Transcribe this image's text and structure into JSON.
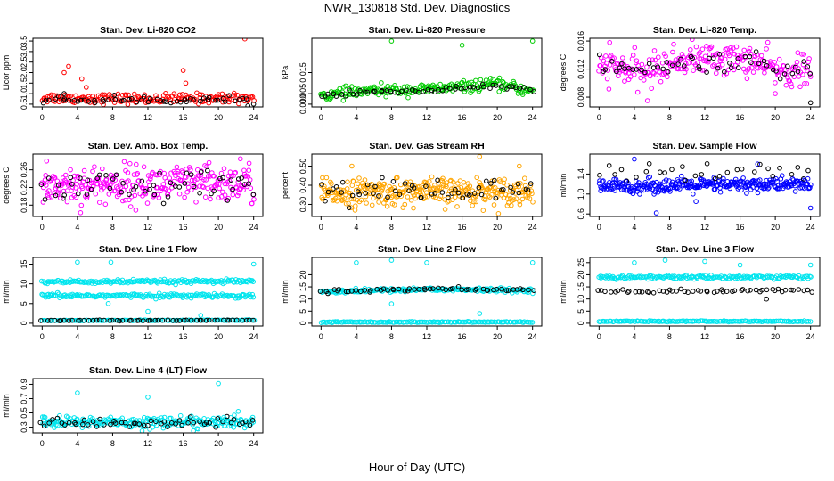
{
  "title": "NWR_130818 Std. Dev. Diagnostics",
  "xlabel": "Hour of Day (UTC)",
  "x_ticks": [
    0,
    4,
    8,
    12,
    16,
    20,
    24
  ],
  "colors": {
    "black": "#000000",
    "red": "#ff0000",
    "green": "#00cc00",
    "magenta": "#ff00ff",
    "orange": "#ffa500",
    "blue": "#0000ff",
    "cyan": "#00e5ee"
  },
  "chart_data": [
    {
      "type": "scatter",
      "title": "Stan. Dev. Li-820 CO2",
      "ylabel": "Licor ppm",
      "xlim": [
        0,
        24
      ],
      "ylim": [
        0.5,
        3.5
      ],
      "yticks": [
        "0.5",
        "1.0",
        "1.5",
        "2.0",
        "2.5",
        "3.0",
        "3.5"
      ],
      "series": [
        {
          "color": "red",
          "base": [
            [
              0,
              0.8
            ],
            [
              12,
              0.75
            ],
            [
              24,
              0.8
            ]
          ],
          "noise": 0.12,
          "n": 180,
          "extra": [
            [
              3,
              2.3
            ],
            [
              2.5,
              2.0
            ],
            [
              4.5,
              1.7
            ],
            [
              16,
              2.1
            ],
            [
              23,
              3.6
            ],
            [
              5,
              1.3
            ],
            [
              16.3,
              1.5
            ]
          ]
        },
        {
          "color": "black",
          "base": [
            [
              0,
              0.7
            ],
            [
              24,
              0.7
            ]
          ],
          "noise": 0.08,
          "n": 55,
          "extra": [
            [
              2.5,
              1.0
            ]
          ]
        }
      ]
    },
    {
      "type": "scatter",
      "title": "Stan. Dev. Li-820 Pressure",
      "ylabel": "kPa",
      "xlim": [
        0,
        24
      ],
      "ylim": [
        0,
        0.03
      ],
      "yticks": [
        "0.000",
        "0.005",
        "0.015"
      ],
      "yvals": [
        0,
        0.005,
        0.015
      ],
      "series": [
        {
          "color": "green",
          "base": [
            [
              0,
              0.004
            ],
            [
              6,
              0.0065
            ],
            [
              12,
              0.007
            ],
            [
              20,
              0.0095
            ],
            [
              24,
              0.006
            ]
          ],
          "noise": 0.0013,
          "n": 220,
          "extra": [
            [
              8,
              0.03
            ],
            [
              16,
              0.028
            ],
            [
              24,
              0.03
            ]
          ]
        },
        {
          "color": "black",
          "base": [
            [
              0,
              0.004
            ],
            [
              6,
              0.006
            ],
            [
              12,
              0.0065
            ],
            [
              20,
              0.009
            ],
            [
              24,
              0.0055
            ]
          ],
          "noise": 0.0008,
          "n": 55,
          "extra": []
        }
      ]
    },
    {
      "type": "scatter",
      "title": "Stan. Dev. Li-820 Temp.",
      "ylabel": "degrees C",
      "xlim": [
        0,
        24
      ],
      "ylim": [
        0.007,
        0.016
      ],
      "yticks": [
        "0.008",
        "0.012",
        "0.016"
      ],
      "yvals": [
        0.008,
        0.012,
        0.016
      ],
      "series": [
        {
          "color": "magenta",
          "base": [
            [
              0,
              0.0125
            ],
            [
              5,
              0.0115
            ],
            [
              10,
              0.0135
            ],
            [
              17,
              0.0133
            ],
            [
              21,
              0.0115
            ],
            [
              24,
              0.012
            ]
          ],
          "noise": 0.0011,
          "n": 260,
          "extra": [
            [
              5.5,
              0.0075
            ],
            [
              20,
              0.0085
            ],
            [
              1.2,
              0.0158
            ]
          ]
        },
        {
          "color": "black",
          "base": [
            [
              0,
              0.0125
            ],
            [
              5,
              0.0115
            ],
            [
              10,
              0.013
            ],
            [
              17,
              0.013
            ],
            [
              21,
              0.0115
            ],
            [
              24,
              0.012
            ]
          ],
          "noise": 0.0007,
          "n": 55,
          "extra": [
            [
              24,
              0.0072
            ]
          ]
        }
      ]
    },
    {
      "type": "scatter",
      "title": "Stan. Dev. Amb. Box Temp.",
      "ylabel": "degrees C",
      "xlim": [
        0,
        24
      ],
      "ylim": [
        0.16,
        0.29
      ],
      "yticks": [
        "0.18",
        "0.22",
        "0.26"
      ],
      "yvals": [
        0.18,
        0.22,
        0.26
      ],
      "series": [
        {
          "color": "magenta",
          "base": [
            [
              0,
              0.225
            ],
            [
              24,
              0.228
            ]
          ],
          "noise": 0.022,
          "n": 300,
          "extra": [
            [
              0.5,
              0.28
            ],
            [
              22.5,
              0.285
            ]
          ]
        },
        {
          "color": "black",
          "base": [
            [
              0,
              0.22
            ],
            [
              24,
              0.22
            ]
          ],
          "noise": 0.02,
          "n": 55,
          "extra": []
        }
      ]
    },
    {
      "type": "scatter",
      "title": "Stan. Dev. Gas Stream RH",
      "ylabel": "percent",
      "xlim": [
        0,
        24
      ],
      "ylim": [
        0.25,
        0.55
      ],
      "yticks": [
        "0.30",
        "0.40",
        "0.50"
      ],
      "yvals": [
        0.3,
        0.4,
        0.5
      ],
      "series": [
        {
          "color": "orange",
          "base": [
            [
              0,
              0.36
            ],
            [
              24,
              0.37
            ]
          ],
          "noise": 0.035,
          "n": 320,
          "extra": [
            [
              18,
              0.55
            ],
            [
              3.5,
              0.5
            ],
            [
              22.5,
              0.5
            ]
          ]
        },
        {
          "color": "black",
          "base": [
            [
              0,
              0.37
            ],
            [
              24,
              0.37
            ]
          ],
          "noise": 0.03,
          "n": 55,
          "extra": []
        }
      ]
    },
    {
      "type": "scatter",
      "title": "Stan. Dev. Sample Flow",
      "ylabel": "ml/min",
      "xlim": [
        0,
        24
      ],
      "ylim": [
        0.6,
        1.75
      ],
      "yticks": [
        "0.6",
        "1.0",
        "1.4"
      ],
      "yvals": [
        0.6,
        1.0,
        1.4
      ],
      "series": [
        {
          "color": "blue",
          "base": [
            [
              0,
              1.15
            ],
            [
              24,
              1.2
            ]
          ],
          "noise": 0.07,
          "n": 320,
          "extra": [
            [
              4,
              1.7
            ],
            [
              6.5,
              0.62
            ],
            [
              18,
              1.6
            ],
            [
              24,
              0.72
            ],
            [
              11,
              0.85
            ]
          ]
        },
        {
          "color": "black",
          "base": [
            [
              0,
              1.4
            ],
            [
              24,
              1.45
            ]
          ],
          "noise": 0.1,
          "n": 30,
          "extra": []
        }
      ]
    },
    {
      "type": "scatter",
      "title": "Stan. Dev. Line 1 Flow",
      "ylabel": "ml/min",
      "xlim": [
        0,
        24
      ],
      "ylim": [
        0,
        16
      ],
      "yticks": [
        "0",
        "5",
        "10",
        "15"
      ],
      "yvals": [
        0,
        5,
        10,
        15
      ],
      "series": [
        {
          "color": "cyan",
          "base": [
            [
              0,
              10.5
            ],
            [
              24,
              10.6
            ]
          ],
          "noise": 0.25,
          "n": 180,
          "extra": [
            [
              4,
              15.5
            ],
            [
              7.8,
              15.5
            ],
            [
              24,
              15
            ]
          ]
        },
        {
          "color": "cyan",
          "base": [
            [
              0,
              7.0
            ],
            [
              24,
              7.0
            ]
          ],
          "noise": 0.25,
          "n": 180,
          "extra": [
            [
              7.5,
              5
            ],
            [
              12,
              3
            ],
            [
              18,
              2
            ]
          ]
        },
        {
          "color": "cyan",
          "base": [
            [
              0,
              0.7
            ],
            [
              24,
              0.8
            ]
          ],
          "noise": 0.05,
          "n": 120,
          "extra": []
        },
        {
          "color": "black",
          "base": [
            [
              0,
              0.7
            ],
            [
              24,
              0.8
            ]
          ],
          "noise": 0.05,
          "n": 55,
          "extra": []
        }
      ]
    },
    {
      "type": "scatter",
      "title": "Stan. Dev. Line 2 Flow",
      "ylabel": "ml/min",
      "xlim": [
        0,
        24
      ],
      "ylim": [
        0,
        26
      ],
      "yticks": [
        "0",
        "5",
        "10",
        "15",
        "20"
      ],
      "yvals": [
        0,
        5,
        10,
        15,
        20
      ],
      "series": [
        {
          "color": "cyan",
          "base": [
            [
              0,
              13
            ],
            [
              12,
              14
            ],
            [
              24,
              13.5
            ]
          ],
          "noise": 0.4,
          "n": 200,
          "extra": [
            [
              4,
              25
            ],
            [
              8,
              26
            ],
            [
              8,
              8
            ],
            [
              12,
              25
            ],
            [
              18,
              4
            ],
            [
              24,
              25
            ]
          ]
        },
        {
          "color": "cyan",
          "base": [
            [
              0,
              0.5
            ],
            [
              24,
              0.5
            ]
          ],
          "noise": 0.1,
          "n": 140,
          "extra": []
        },
        {
          "color": "black",
          "base": [
            [
              0,
              13.2
            ],
            [
              12,
              14
            ],
            [
              24,
              13.5
            ]
          ],
          "noise": 0.35,
          "n": 55,
          "extra": []
        }
      ]
    },
    {
      "type": "scatter",
      "title": "Stan. Dev. Line 3 Flow",
      "ylabel": "ml/min",
      "xlim": [
        0,
        24
      ],
      "ylim": [
        0,
        26
      ],
      "yticks": [
        "0",
        "5",
        "10",
        "15",
        "20",
        "25"
      ],
      "yvals": [
        0,
        5,
        10,
        15,
        20,
        25
      ],
      "series": [
        {
          "color": "cyan",
          "base": [
            [
              0,
              19
            ],
            [
              24,
              19
            ]
          ],
          "noise": 0.4,
          "n": 180,
          "extra": [
            [
              4,
              25
            ],
            [
              7.5,
              26
            ],
            [
              12,
              25.5
            ],
            [
              16,
              24
            ],
            [
              24,
              24
            ]
          ]
        },
        {
          "color": "cyan",
          "base": [
            [
              0,
              0.8
            ],
            [
              24,
              0.8
            ]
          ],
          "noise": 0.1,
          "n": 140,
          "extra": []
        },
        {
          "color": "black",
          "base": [
            [
              0,
              13
            ],
            [
              24,
              13.5
            ]
          ],
          "noise": 0.4,
          "n": 55,
          "extra": [
            [
              19,
              10
            ]
          ]
        }
      ]
    },
    {
      "type": "scatter",
      "title": "Stan. Dev. Line 4 (LT) Flow",
      "ylabel": "ml/min",
      "xlim": [
        0,
        24
      ],
      "ylim": [
        0.25,
        0.95
      ],
      "yticks": [
        "0.3",
        "0.5",
        "0.7",
        "0.9"
      ],
      "yvals": [
        0.3,
        0.5,
        0.7,
        0.9
      ],
      "series": [
        {
          "color": "cyan",
          "base": [
            [
              0,
              0.37
            ],
            [
              24,
              0.37
            ]
          ],
          "noise": 0.04,
          "n": 260,
          "extra": [
            [
              4,
              0.78
            ],
            [
              12,
              0.72
            ],
            [
              20,
              0.91
            ]
          ]
        },
        {
          "color": "black",
          "base": [
            [
              0,
              0.36
            ],
            [
              24,
              0.36
            ]
          ],
          "noise": 0.035,
          "n": 55,
          "extra": []
        }
      ]
    }
  ]
}
